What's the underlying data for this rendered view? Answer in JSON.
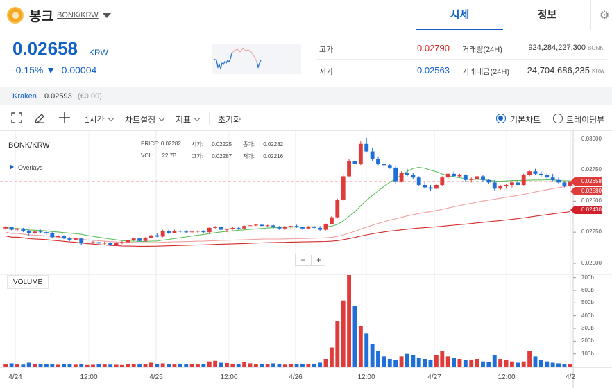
{
  "header": {
    "coin_name": "봉크",
    "pair": "BONK/KRW",
    "tab_quote": "시세",
    "tab_info": "정보",
    "gear_icon": "gear-icon"
  },
  "summary": {
    "price": "0.02658",
    "unit": "KRW",
    "change_pct": "-0.15%",
    "change_abs": "▼ -0.00004",
    "high_label": "고가",
    "high_value": "0.02790",
    "low_label": "저가",
    "low_value": "0.02563",
    "vol_label": "거래량(24H)",
    "vol_value": "924,284,227,300",
    "vol_unit": "BONK",
    "amt_label": "거래대금(24H)",
    "amt_value": "24,704,686,235",
    "amt_unit": "KRW"
  },
  "exchange": {
    "name": "Kraken",
    "price": "0.02593",
    "change": "(€0.00)"
  },
  "toolbar": {
    "interval": "1시간",
    "chart_settings": "차트설정",
    "indicators": "지표",
    "reset": "초기화",
    "basic_chart": "기본차트",
    "trading_view": "트레이딩뷰"
  },
  "chart_data": {
    "type": "candlestick",
    "title": "BONK/KRW",
    "ohlc_labels": {
      "price_label": "PRICE:",
      "price": "0.02282",
      "open_label": "시가:",
      "open": "0.02225",
      "close_label": "종가:",
      "close": "0.02282",
      "vol_label": "VOL:",
      "vol": "22.7B",
      "high_label": "고가:",
      "high": "0.02287",
      "low_label": "저가:",
      "low": "0.02216"
    },
    "overlays_label": "Overlays",
    "volume_label": "VOLUME",
    "y_ticks": [
      "0.03000",
      "0.02750",
      "0.02500",
      "0.02250",
      "0.02000"
    ],
    "y_tick_values": [
      0.03,
      0.0275,
      0.025,
      0.0225,
      0.02
    ],
    "ylim": [
      0.0195,
      0.0302
    ],
    "vol_ticks": [
      "700b",
      "600b",
      "500b",
      "400b",
      "300b",
      "200b",
      "100b"
    ],
    "vol_tick_values": [
      700,
      600,
      500,
      400,
      300,
      200,
      100
    ],
    "vol_unit_ylim": [
      0,
      720
    ],
    "x_ticks": [
      "4/24",
      "12:00",
      "4/25",
      "12:00",
      "4/26",
      "12:00",
      "4/27",
      "12:00",
      "4/2"
    ],
    "price_tags": [
      {
        "value": "0.02658",
        "price": 0.02658,
        "color": "#e03b3b"
      },
      {
        "value": "0.02580",
        "price": 0.0258,
        "color": "#e03b3b"
      },
      {
        "value": "0.02430",
        "price": 0.0243,
        "color": "#d4202a"
      }
    ],
    "current_price": 0.02658,
    "ma_colors": {
      "ma1": "#5cbf5c",
      "ma2": "#f0a0a0",
      "ma3": "#d42a2a"
    },
    "candle_colors": {
      "up": "#e03b3b",
      "down": "#1f6fd8"
    },
    "candles": [
      [
        0.0228,
        0.023,
        0.0227,
        0.0229
      ],
      [
        0.0229,
        0.02295,
        0.02265,
        0.0227
      ],
      [
        0.0227,
        0.02285,
        0.02255,
        0.0228
      ],
      [
        0.0228,
        0.02285,
        0.0225,
        0.0226
      ],
      [
        0.0226,
        0.0227,
        0.0222,
        0.0224
      ],
      [
        0.0224,
        0.02265,
        0.02235,
        0.02255
      ],
      [
        0.02255,
        0.0227,
        0.0224,
        0.0225
      ],
      [
        0.0225,
        0.02262,
        0.0223,
        0.0224
      ],
      [
        0.0224,
        0.0225,
        0.022,
        0.0221
      ],
      [
        0.0221,
        0.0223,
        0.022,
        0.0222
      ],
      [
        0.0222,
        0.02225,
        0.02195,
        0.022
      ],
      [
        0.022,
        0.0221,
        0.0218,
        0.0219
      ],
      [
        0.0219,
        0.02205,
        0.02185,
        0.022
      ],
      [
        0.022,
        0.02202,
        0.0215,
        0.0216
      ],
      [
        0.0216,
        0.02175,
        0.0215,
        0.02165
      ],
      [
        0.02165,
        0.0218,
        0.02155,
        0.0217
      ],
      [
        0.0217,
        0.0218,
        0.0215,
        0.0216
      ],
      [
        0.0216,
        0.02175,
        0.0215,
        0.02165
      ],
      [
        0.02165,
        0.0217,
        0.0214,
        0.0215
      ],
      [
        0.0215,
        0.0217,
        0.0214,
        0.02165
      ],
      [
        0.02165,
        0.0218,
        0.02155,
        0.0217
      ],
      [
        0.0217,
        0.0219,
        0.02165,
        0.02185
      ],
      [
        0.02185,
        0.02205,
        0.0218,
        0.022
      ],
      [
        0.022,
        0.02205,
        0.02175,
        0.0218
      ],
      [
        0.0218,
        0.0221,
        0.02175,
        0.02205
      ],
      [
        0.02205,
        0.0223,
        0.022,
        0.02225
      ],
      [
        0.02225,
        0.0224,
        0.0221,
        0.02215
      ],
      [
        0.02215,
        0.0227,
        0.0221,
        0.0226
      ],
      [
        0.0226,
        0.0227,
        0.02235,
        0.02245
      ],
      [
        0.02245,
        0.0227,
        0.0224,
        0.0226
      ],
      [
        0.0226,
        0.0227,
        0.02245,
        0.02255
      ],
      [
        0.02255,
        0.02265,
        0.0224,
        0.0225
      ],
      [
        0.0225,
        0.0226,
        0.02235,
        0.02255
      ],
      [
        0.02255,
        0.02265,
        0.02245,
        0.0226
      ],
      [
        0.0226,
        0.02265,
        0.0224,
        0.0225
      ],
      [
        0.0225,
        0.0229,
        0.02245,
        0.02285
      ],
      [
        0.02285,
        0.023,
        0.0228,
        0.02295
      ],
      [
        0.02295,
        0.023,
        0.0226,
        0.0227
      ],
      [
        0.0227,
        0.0228,
        0.0225,
        0.02275
      ],
      [
        0.02275,
        0.0229,
        0.0227,
        0.02285
      ],
      [
        0.02285,
        0.02295,
        0.0227,
        0.0228
      ],
      [
        0.0228,
        0.02305,
        0.02275,
        0.023
      ],
      [
        0.023,
        0.0231,
        0.0229,
        0.02305
      ],
      [
        0.02305,
        0.02315,
        0.023,
        0.0231
      ],
      [
        0.0231,
        0.02315,
        0.02295,
        0.023
      ],
      [
        0.023,
        0.0231,
        0.0229,
        0.02305
      ],
      [
        0.02305,
        0.0231,
        0.0228,
        0.0229
      ],
      [
        0.0229,
        0.023,
        0.0227,
        0.0228
      ],
      [
        0.0228,
        0.023,
        0.0227,
        0.0229
      ],
      [
        0.0229,
        0.02305,
        0.0228,
        0.023
      ],
      [
        0.023,
        0.0231,
        0.02285,
        0.0229
      ],
      [
        0.0229,
        0.02295,
        0.0227,
        0.0228
      ],
      [
        0.0228,
        0.023,
        0.02275,
        0.02295
      ],
      [
        0.02295,
        0.02305,
        0.0228,
        0.02285
      ],
      [
        0.02285,
        0.023,
        0.0226,
        0.0227
      ],
      [
        0.0227,
        0.0232,
        0.02265,
        0.02315
      ],
      [
        0.02315,
        0.0238,
        0.0231,
        0.0237
      ],
      [
        0.0237,
        0.0252,
        0.0236,
        0.0251
      ],
      [
        0.0251,
        0.0272,
        0.025,
        0.027
      ],
      [
        0.027,
        0.0284,
        0.0269,
        0.0282
      ],
      [
        0.0282,
        0.0288,
        0.0276,
        0.028
      ],
      [
        0.028,
        0.0298,
        0.0279,
        0.0296
      ],
      [
        0.0296,
        0.0301,
        0.0289,
        0.029
      ],
      [
        0.029,
        0.0293,
        0.0282,
        0.0284
      ],
      [
        0.0284,
        0.0286,
        0.0279,
        0.028
      ],
      [
        0.028,
        0.0282,
        0.0277,
        0.0279
      ],
      [
        0.0279,
        0.028,
        0.0276,
        0.0277
      ],
      [
        0.0277,
        0.0278,
        0.0264,
        0.0266
      ],
      [
        0.0266,
        0.0274,
        0.0265,
        0.0273
      ],
      [
        0.0273,
        0.0276,
        0.027,
        0.0271
      ],
      [
        0.0271,
        0.0273,
        0.0268,
        0.0269
      ],
      [
        0.0269,
        0.027,
        0.0262,
        0.0263
      ],
      [
        0.0263,
        0.0266,
        0.026,
        0.0261
      ],
      [
        0.0261,
        0.0263,
        0.0258,
        0.026
      ],
      [
        0.026,
        0.0264,
        0.02595,
        0.0263
      ],
      [
        0.0263,
        0.027,
        0.0262,
        0.0269
      ],
      [
        0.0269,
        0.0273,
        0.0268,
        0.0272
      ],
      [
        0.0272,
        0.0274,
        0.0269,
        0.027
      ],
      [
        0.027,
        0.0272,
        0.0269,
        0.0271
      ],
      [
        0.0271,
        0.02715,
        0.0266,
        0.0267
      ],
      [
        0.0267,
        0.0269,
        0.0265,
        0.0268
      ],
      [
        0.0268,
        0.0271,
        0.0267,
        0.027
      ],
      [
        0.027,
        0.0271,
        0.0266,
        0.0267
      ],
      [
        0.0267,
        0.0268,
        0.0264,
        0.0265
      ],
      [
        0.0265,
        0.0267,
        0.0258,
        0.026
      ],
      [
        0.026,
        0.0263,
        0.0259,
        0.0262
      ],
      [
        0.0262,
        0.0264,
        0.026,
        0.0263
      ],
      [
        0.0263,
        0.0266,
        0.0261,
        0.0265
      ],
      [
        0.0265,
        0.0267,
        0.0262,
        0.0263
      ],
      [
        0.0263,
        0.0272,
        0.0262,
        0.0271
      ],
      [
        0.0271,
        0.0275,
        0.027,
        0.0274
      ],
      [
        0.0274,
        0.0276,
        0.0271,
        0.0272
      ],
      [
        0.0272,
        0.0274,
        0.0269,
        0.0271
      ],
      [
        0.0271,
        0.0273,
        0.0268,
        0.0269
      ],
      [
        0.0269,
        0.0272,
        0.0266,
        0.0267
      ],
      [
        0.0267,
        0.0269,
        0.0264,
        0.0265
      ],
      [
        0.0265,
        0.0266,
        0.0261,
        0.0262
      ],
      [
        0.0262,
        0.02665,
        0.026,
        0.02658
      ]
    ],
    "volumes": [
      20,
      25,
      18,
      15,
      30,
      22,
      18,
      20,
      16,
      14,
      18,
      20,
      15,
      22,
      12,
      14,
      18,
      16,
      15,
      14,
      12,
      18,
      22,
      16,
      20,
      30,
      20,
      25,
      18,
      16,
      22,
      18,
      20,
      16,
      18,
      40,
      45,
      30,
      28,
      22,
      20,
      35,
      25,
      18,
      22,
      20,
      25,
      18,
      15,
      20,
      18,
      22,
      20,
      18,
      30,
      60,
      150,
      360,
      520,
      720,
      480,
      320,
      260,
      180,
      120,
      80,
      60,
      50,
      80,
      100,
      90,
      70,
      60,
      50,
      90,
      120,
      80,
      70,
      60,
      50,
      55,
      60,
      40,
      35,
      90,
      60,
      50,
      40,
      30,
      40,
      120,
      80,
      50,
      40,
      30,
      25,
      20,
      22
    ]
  }
}
